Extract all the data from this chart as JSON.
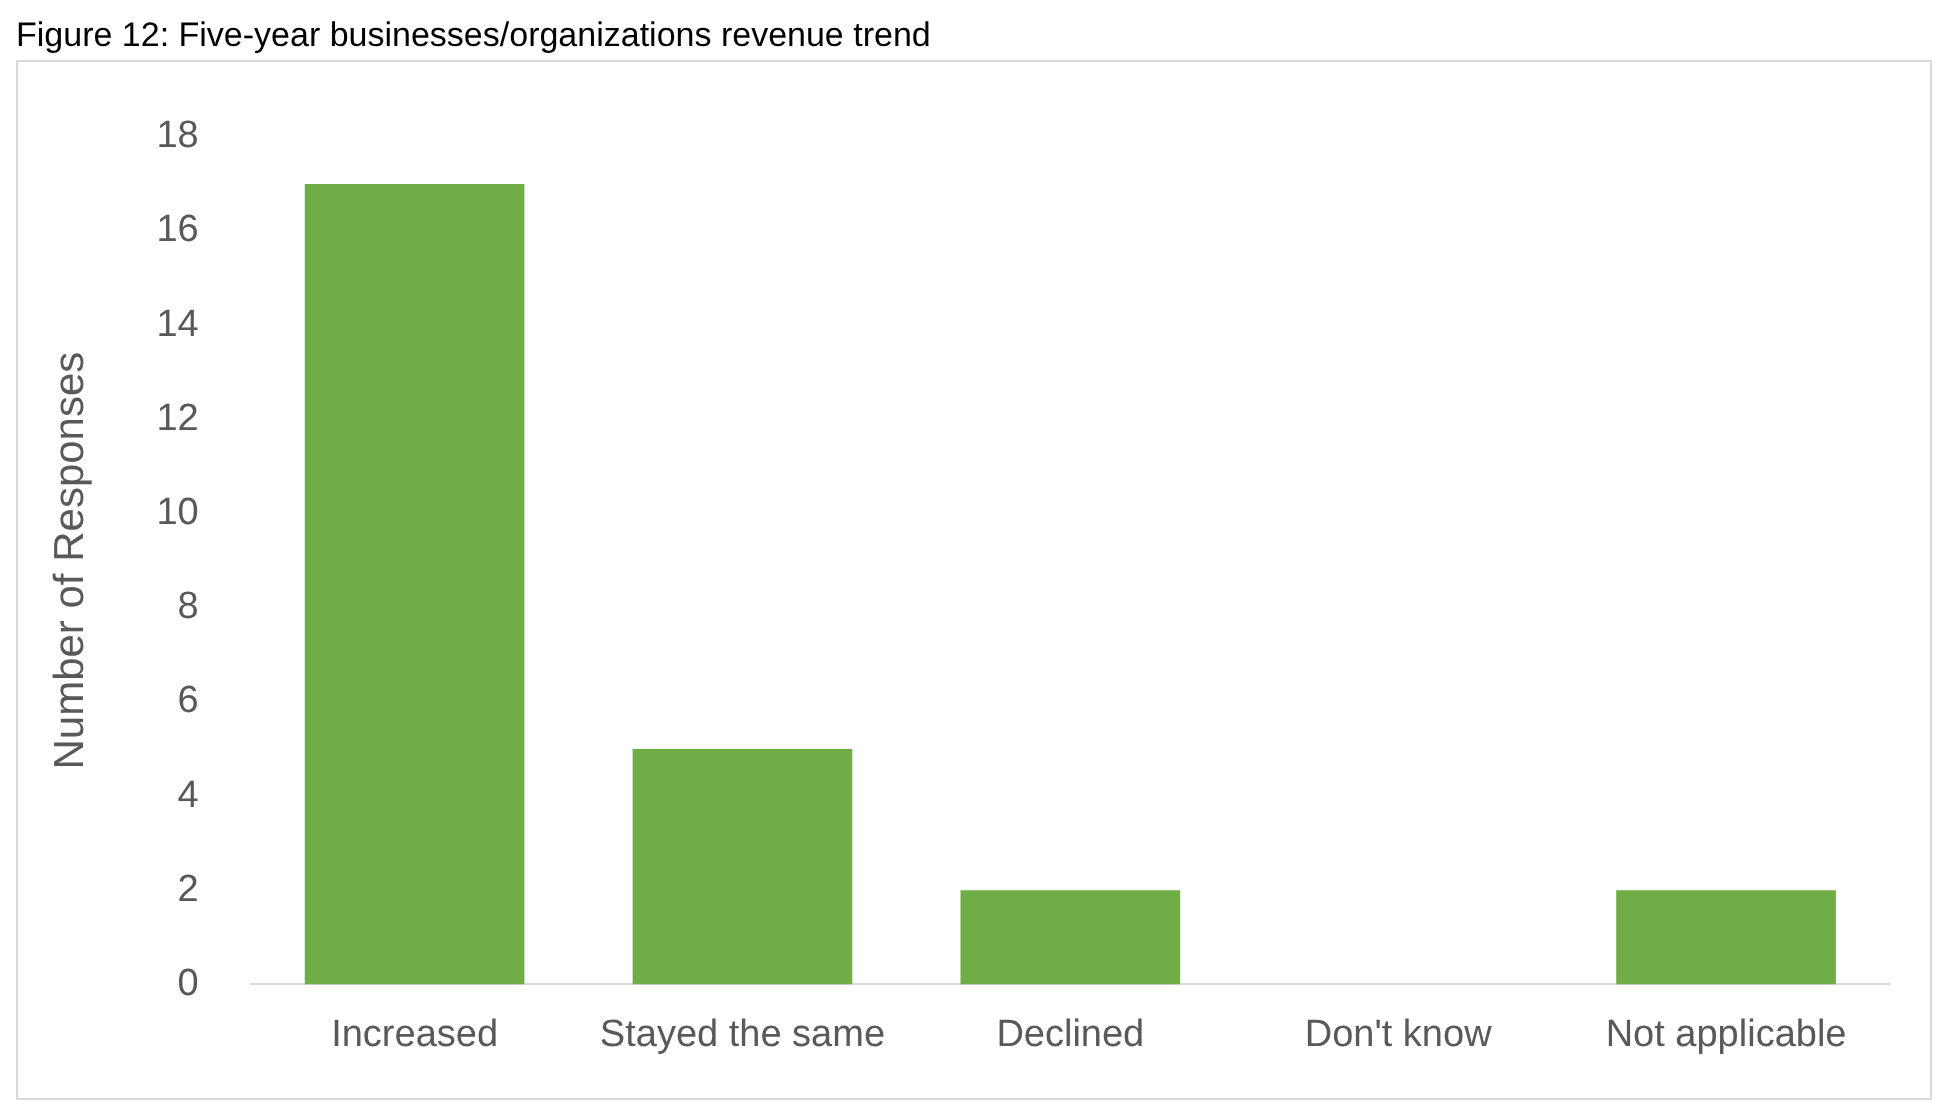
{
  "chart_data": {
    "type": "bar",
    "title": "Figure 12: Five-year businesses/organizations revenue trend",
    "ylabel": "Number of Responses",
    "categories": [
      "Increased",
      "Stayed the same",
      "Declined",
      "Don't know",
      "Not applicable"
    ],
    "values": [
      17,
      5,
      2,
      0,
      2
    ],
    "color": "#70ad47",
    "ylim": [
      0,
      18
    ],
    "yticks": [
      0,
      2,
      4,
      6,
      8,
      10,
      12,
      14,
      16,
      18
    ],
    "grid": false,
    "legend": false
  }
}
